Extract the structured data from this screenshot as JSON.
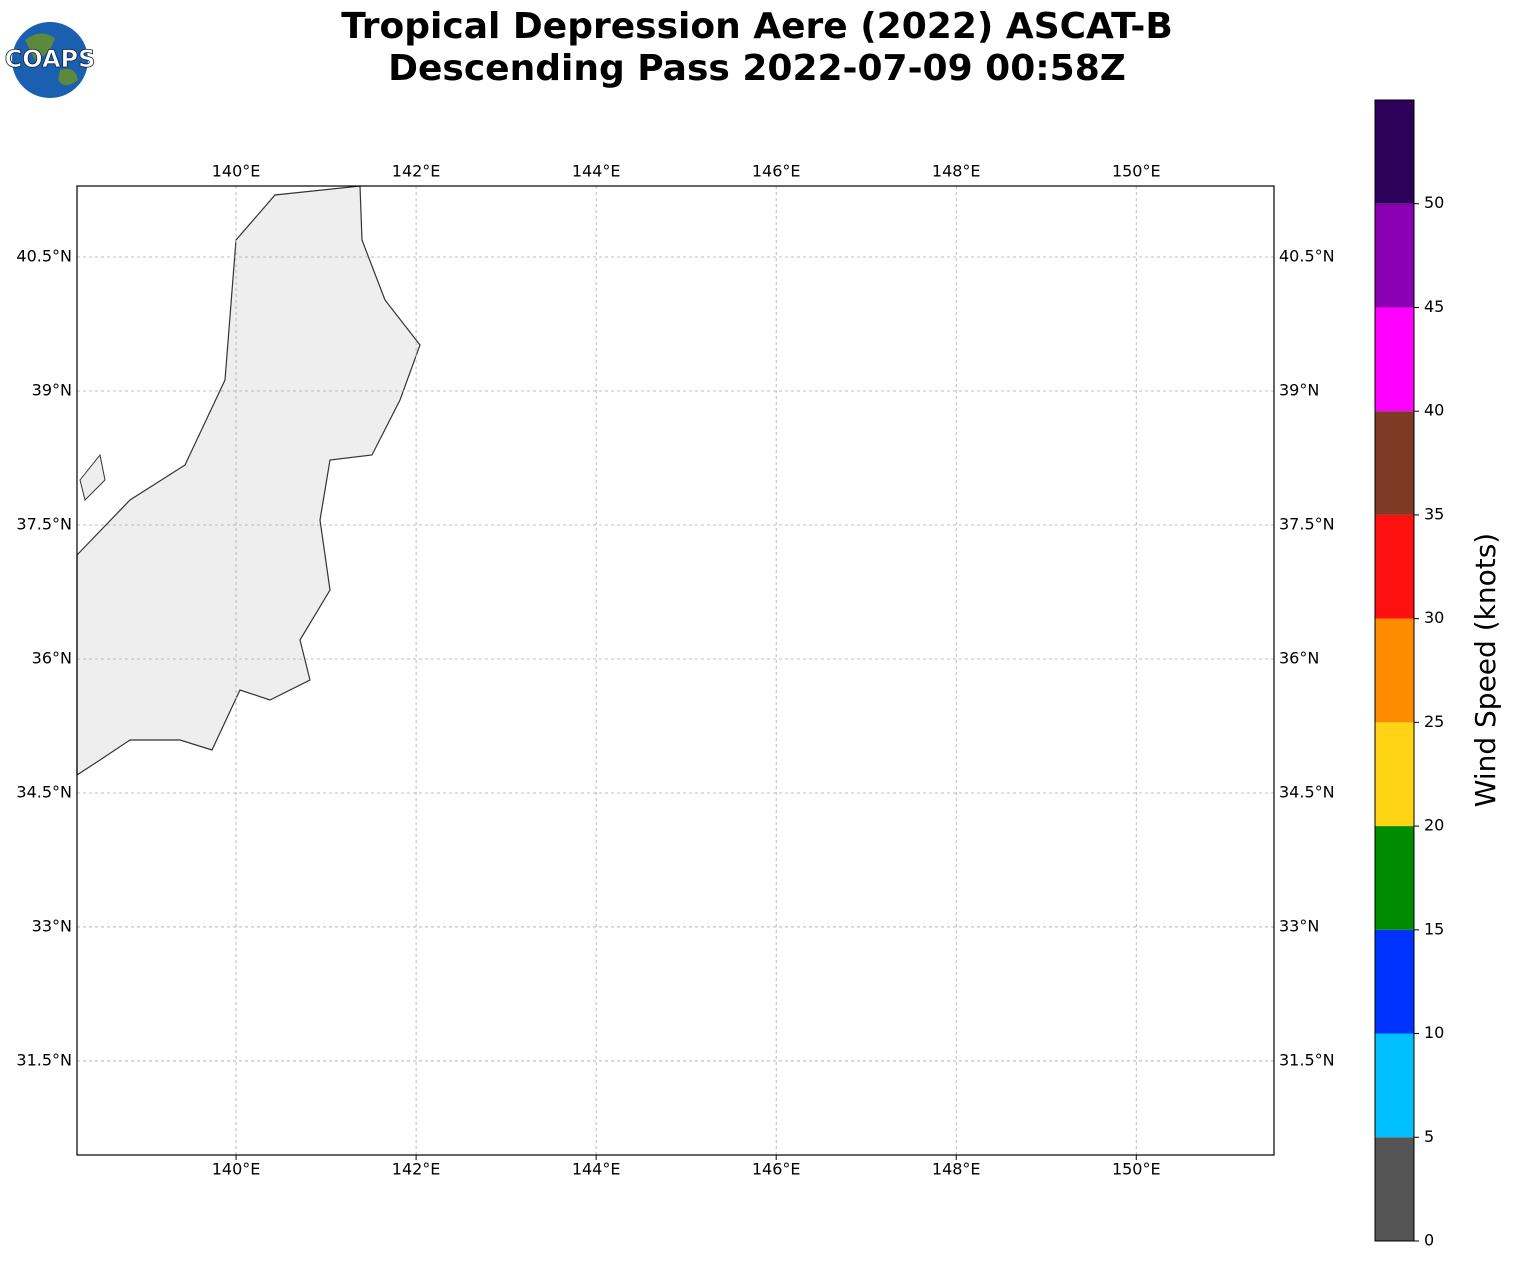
{
  "header": {
    "title_line1": "Tropical Depression Aere (2022) ASCAT-B",
    "title_line2": "Descending Pass 2022-07-09 00:58Z",
    "logo": "COAPS"
  },
  "map": {
    "xlim": [
      138.233,
      151.53
    ],
    "ylim": [
      30.447,
      41.295
    ],
    "xticks": [
      {
        "value": 140,
        "label": "140°E"
      },
      {
        "value": 142,
        "label": "142°E"
      },
      {
        "value": 144,
        "label": "144°E"
      },
      {
        "value": 146,
        "label": "146°E"
      },
      {
        "value": 148,
        "label": "148°E"
      },
      {
        "value": 150,
        "label": "150°E"
      }
    ],
    "yticks": [
      {
        "value": 31.5,
        "label": "31.5°N"
      },
      {
        "value": 33,
        "label": "33°N"
      },
      {
        "value": 34.5,
        "label": "34.5°N"
      },
      {
        "value": 36,
        "label": "36°N"
      },
      {
        "value": 37.5,
        "label": "37.5°N"
      },
      {
        "value": 39,
        "label": "39°N"
      },
      {
        "value": 40.5,
        "label": "40.5°N"
      }
    ],
    "grid": true
  },
  "colorbar": {
    "label": "Wind Speed (knots)",
    "lim": [
      0,
      55
    ],
    "ticks": [
      0,
      5,
      10,
      15,
      20,
      25,
      30,
      35,
      40,
      45,
      50
    ],
    "bins": [
      0,
      5,
      10,
      15,
      20,
      25,
      30,
      35,
      40,
      45,
      50,
      55
    ],
    "colors": [
      "#555555",
      "#00bfff",
      "#0033ff",
      "#008c00",
      "#ffd414",
      "#ff8c00",
      "#ff1010",
      "#7f3a26",
      "#ff00ff",
      "#8c00b4",
      "#2d005a"
    ]
  }
}
